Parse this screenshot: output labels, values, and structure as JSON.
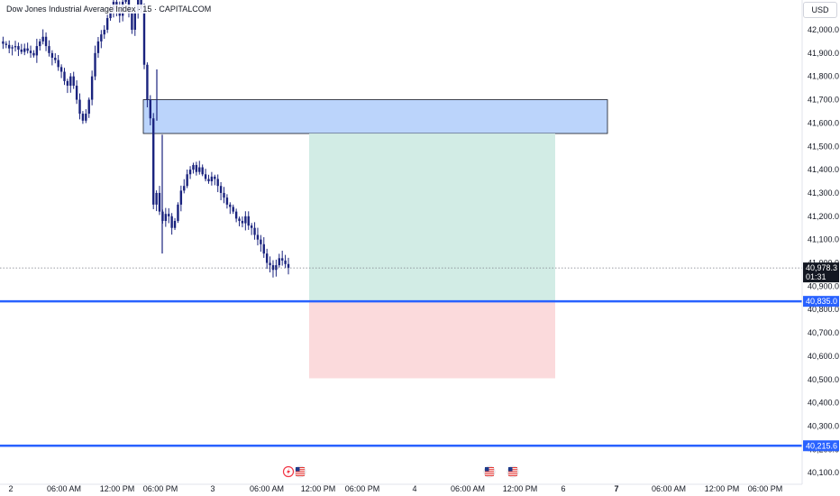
{
  "header": {
    "title": "Dow Jones Industrial Average Index · 15 · CAPITALCOM",
    "currency": "USD"
  },
  "chart_data": {
    "type": "candlestick",
    "ylim": [
      40100,
      42100
    ],
    "y_ticks": [
      "42,000.0",
      "41,900.0",
      "41,800.0",
      "41,700.0",
      "41,600.0",
      "41,500.0",
      "41,400.0",
      "41,300.0",
      "41,200.0",
      "41,100.0",
      "41,000.0",
      "40,900.0",
      "40,800.0",
      "40,700.0",
      "40,600.0",
      "40,500.0",
      "40,400.0",
      "40,300.0",
      "40,200.0",
      "40,100.0"
    ],
    "y_tick_values": [
      42000,
      41900,
      41800,
      41700,
      41600,
      41500,
      41400,
      41300,
      41200,
      41100,
      41000,
      40900,
      40800,
      40700,
      40600,
      40500,
      40400,
      40300,
      40200,
      40100
    ],
    "x_labels": [
      "2",
      "06:00 AM",
      "12:00 PM",
      "06:00 PM",
      "3",
      "06:00 AM",
      "12:00 PM",
      "06:00 PM",
      "4",
      "06:00 AM",
      "12:00 PM",
      "6",
      "7",
      "06:00 AM",
      "12:00 PM",
      "06:00 PM"
    ],
    "x_bold": [
      false,
      false,
      false,
      false,
      false,
      false,
      false,
      false,
      false,
      false,
      false,
      false,
      true,
      false,
      false,
      false
    ],
    "candle_color": "#1a237e",
    "price_path": [
      41950,
      41940,
      41935,
      41920,
      41925,
      41930,
      41915,
      41905,
      41920,
      41910,
      41900,
      41890,
      41930,
      41950,
      41970,
      41930,
      41900,
      41880,
      41870,
      41840,
      41820,
      41780,
      41760,
      41800,
      41760,
      41700,
      41640,
      41610,
      41640,
      41700,
      41800,
      41900,
      41950,
      41980,
      42000,
      42050,
      42080,
      42120,
      42090,
      42060,
      42120,
      42150,
      42070,
      42000,
      42080,
      42130,
      42090,
      41850,
      41700,
      41620,
      41250,
      41300,
      41220,
      41180,
      41210,
      41200,
      41150,
      41180,
      41250,
      41310,
      41330,
      41380,
      41400,
      41420,
      41390,
      41410,
      41380,
      41360,
      41350,
      41370,
      41360,
      41330,
      41300,
      41280,
      41250,
      41240,
      41220,
      41190,
      41180,
      41170,
      41200,
      41160,
      41150,
      41120,
      41100,
      41080,
      41040,
      41000,
      40990,
      40970,
      40990,
      41020,
      41010,
      40995,
      40978
    ],
    "positions": [
      {
        "type": "supply_zone",
        "top": 41700,
        "bottom": 41555,
        "color": "#bbd4fb"
      },
      {
        "type": "target",
        "top": 41555,
        "bottom": 40835,
        "color": "#d2ece5"
      },
      {
        "type": "stop",
        "top": 40835,
        "bottom": 40505,
        "color": "#fbdadc"
      }
    ],
    "horizontal_lines": [
      {
        "value": 40835.0,
        "label": "40,835.0",
        "color": "#2962ff"
      },
      {
        "value": 40215.6,
        "label": "40,215.6",
        "color": "#2962ff"
      }
    ],
    "last_price": {
      "value": 40978.3,
      "label": "40,978.3",
      "countdown": "01:31"
    },
    "event_icons": [
      "lightning-icon",
      "us-flag-icon",
      "us-flag-icon",
      "us-flag-icon"
    ]
  }
}
